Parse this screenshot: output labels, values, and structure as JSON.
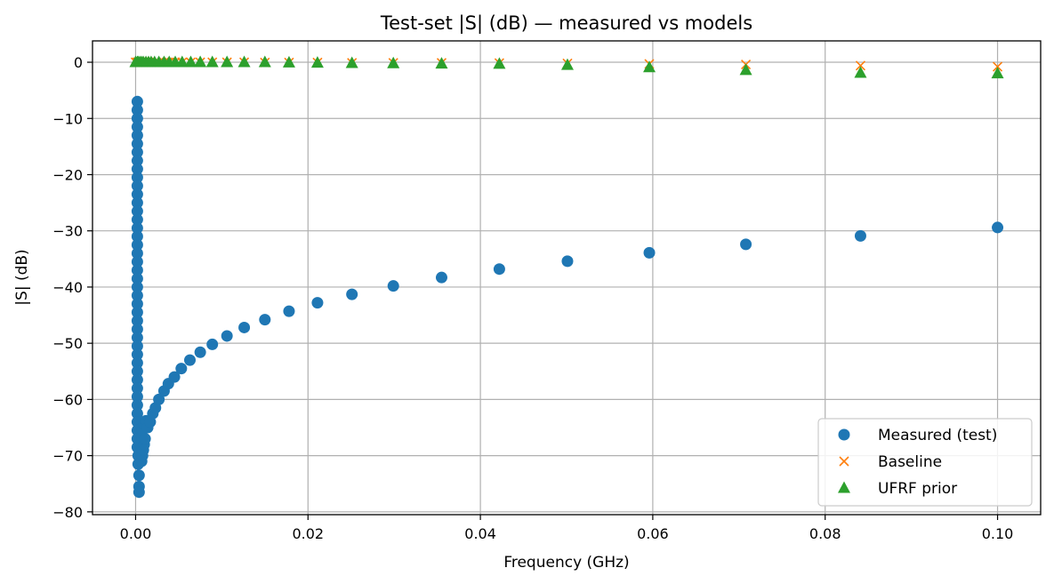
{
  "chart_data": {
    "type": "scatter",
    "title": "Test-set |S| (dB) — measured vs models",
    "xlabel": "Frequency (GHz)",
    "ylabel": "|S| (dB)",
    "xlim": [
      -0.005,
      0.105
    ],
    "ylim": [
      -80.5,
      3.8
    ],
    "x_ticks": [
      0.0,
      0.02,
      0.04,
      0.06,
      0.08,
      0.1
    ],
    "x_tick_labels": [
      "0.00",
      "0.02",
      "0.04",
      "0.06",
      "0.08",
      "0.10"
    ],
    "y_ticks": [
      0,
      -10,
      -20,
      -30,
      -40,
      -50,
      -60,
      -70,
      -80
    ],
    "y_tick_labels": [
      "0",
      "−10",
      "−20",
      "−30",
      "−40",
      "−50",
      "−60",
      "−70",
      "−80"
    ],
    "grid": true,
    "legend_position": "lower-right",
    "colors": {
      "measured": "#1f77b4",
      "baseline": "#ff7f0e",
      "ufrf": "#2ca02c"
    },
    "series": [
      {
        "name": "Measured (test)",
        "marker": "circle",
        "points": [
          [
            0.0002,
            -7.0
          ],
          [
            0.0002,
            -8.5
          ],
          [
            0.0002,
            -10.0
          ],
          [
            0.0002,
            -11.5
          ],
          [
            0.0002,
            -13.0
          ],
          [
            0.0002,
            -14.5
          ],
          [
            0.0002,
            -16.0
          ],
          [
            0.0002,
            -17.5
          ],
          [
            0.0002,
            -19.0
          ],
          [
            0.0002,
            -20.5
          ],
          [
            0.0002,
            -22.0
          ],
          [
            0.0002,
            -23.5
          ],
          [
            0.0002,
            -25.0
          ],
          [
            0.0002,
            -26.5
          ],
          [
            0.0002,
            -28.0
          ],
          [
            0.0002,
            -29.5
          ],
          [
            0.0002,
            -31.0
          ],
          [
            0.0002,
            -32.5
          ],
          [
            0.0002,
            -34.0
          ],
          [
            0.0002,
            -35.5
          ],
          [
            0.0002,
            -37.0
          ],
          [
            0.0002,
            -38.5
          ],
          [
            0.0002,
            -40.0
          ],
          [
            0.0002,
            -41.5
          ],
          [
            0.0002,
            -43.0
          ],
          [
            0.0002,
            -44.5
          ],
          [
            0.0002,
            -46.0
          ],
          [
            0.0002,
            -47.5
          ],
          [
            0.0002,
            -49.0
          ],
          [
            0.0002,
            -50.5
          ],
          [
            0.0002,
            -52.0
          ],
          [
            0.0002,
            -53.5
          ],
          [
            0.0002,
            -55.0
          ],
          [
            0.0002,
            -56.5
          ],
          [
            0.0002,
            -58.0
          ],
          [
            0.0002,
            -59.5
          ],
          [
            0.0002,
            -61.0
          ],
          [
            0.0002,
            -62.5
          ],
          [
            0.0002,
            -64.0
          ],
          [
            0.0002,
            -65.5
          ],
          [
            0.0002,
            -67.0
          ],
          [
            0.0002,
            -68.5
          ],
          [
            0.0003,
            -70.0
          ],
          [
            0.0003,
            -71.5
          ],
          [
            0.0004,
            -73.5
          ],
          [
            0.0004,
            -75.5
          ],
          [
            0.0004,
            -76.5
          ],
          [
            0.0005,
            -69.5
          ],
          [
            0.0006,
            -68.0
          ],
          [
            0.0007,
            -66.5
          ],
          [
            0.0008,
            -65.5
          ],
          [
            0.001,
            -64.5
          ],
          [
            0.0012,
            -63.8
          ],
          [
            0.0007,
            -71.0
          ],
          [
            0.0008,
            -70.0
          ],
          [
            0.0009,
            -69.0
          ],
          [
            0.001,
            -68.0
          ],
          [
            0.0011,
            -67.0
          ],
          [
            0.0014,
            -65.0
          ],
          [
            0.0017,
            -64.0
          ],
          [
            0.002,
            -62.5
          ],
          [
            0.0023,
            -61.5
          ],
          [
            0.0027,
            -60.0
          ],
          [
            0.0033,
            -58.5
          ],
          [
            0.0038,
            -57.2
          ],
          [
            0.0045,
            -56.0
          ],
          [
            0.0053,
            -54.5
          ],
          [
            0.0063,
            -53.0
          ],
          [
            0.0075,
            -51.6
          ],
          [
            0.0089,
            -50.2
          ],
          [
            0.0106,
            -48.7
          ],
          [
            0.0126,
            -47.2
          ],
          [
            0.015,
            -45.8
          ],
          [
            0.0178,
            -44.3
          ],
          [
            0.0211,
            -42.8
          ],
          [
            0.0251,
            -41.3
          ],
          [
            0.0299,
            -39.8
          ],
          [
            0.0355,
            -38.3
          ],
          [
            0.0422,
            -36.8
          ],
          [
            0.0501,
            -35.4
          ],
          [
            0.0596,
            -33.9
          ],
          [
            0.0708,
            -32.4
          ],
          [
            0.0841,
            -30.9
          ],
          [
            0.1,
            -29.4
          ]
        ]
      },
      {
        "name": "Baseline",
        "marker": "x",
        "points": [
          [
            0.0,
            0.0
          ],
          [
            0.0002,
            0.0
          ],
          [
            0.0003,
            0.0
          ],
          [
            0.0005,
            0.0
          ],
          [
            0.0007,
            0.0
          ],
          [
            0.0009,
            0.0
          ],
          [
            0.0012,
            0.0
          ],
          [
            0.0015,
            0.0
          ],
          [
            0.0018,
            0.0
          ],
          [
            0.0022,
            0.0
          ],
          [
            0.0027,
            0.0
          ],
          [
            0.0033,
            0.0
          ],
          [
            0.0039,
            0.0
          ],
          [
            0.0046,
            0.0
          ],
          [
            0.0054,
            0.0
          ],
          [
            0.0064,
            0.0
          ],
          [
            0.0075,
            0.0
          ],
          [
            0.0089,
            0.0
          ],
          [
            0.0106,
            0.0
          ],
          [
            0.0126,
            0.0
          ],
          [
            0.015,
            -0.05
          ],
          [
            0.0178,
            -0.05
          ],
          [
            0.0211,
            -0.05
          ],
          [
            0.0251,
            -0.1
          ],
          [
            0.0299,
            -0.1
          ],
          [
            0.0355,
            -0.1
          ],
          [
            0.0422,
            -0.15
          ],
          [
            0.0501,
            -0.2
          ],
          [
            0.0596,
            -0.3
          ],
          [
            0.0708,
            -0.4
          ],
          [
            0.0841,
            -0.6
          ],
          [
            0.1,
            -0.8
          ]
        ]
      },
      {
        "name": "UFRF prior",
        "marker": "triangle",
        "points": [
          [
            0.0,
            0.0
          ],
          [
            0.0002,
            0.0
          ],
          [
            0.0003,
            0.0
          ],
          [
            0.0005,
            0.0
          ],
          [
            0.0007,
            0.0
          ],
          [
            0.0009,
            0.0
          ],
          [
            0.0012,
            0.0
          ],
          [
            0.0015,
            0.0
          ],
          [
            0.0018,
            0.0
          ],
          [
            0.0022,
            0.0
          ],
          [
            0.0027,
            0.0
          ],
          [
            0.0033,
            0.0
          ],
          [
            0.0039,
            0.0
          ],
          [
            0.0046,
            0.0
          ],
          [
            0.0054,
            0.0
          ],
          [
            0.0064,
            0.0
          ],
          [
            0.0075,
            0.0
          ],
          [
            0.0089,
            0.0
          ],
          [
            0.0106,
            0.0
          ],
          [
            0.0126,
            0.0
          ],
          [
            0.015,
            0.0
          ],
          [
            0.0178,
            -0.05
          ],
          [
            0.0211,
            -0.1
          ],
          [
            0.0251,
            -0.15
          ],
          [
            0.0299,
            -0.2
          ],
          [
            0.0355,
            -0.25
          ],
          [
            0.0422,
            -0.3
          ],
          [
            0.0501,
            -0.5
          ],
          [
            0.0596,
            -0.9
          ],
          [
            0.0708,
            -1.4
          ],
          [
            0.0841,
            -1.9
          ],
          [
            0.1,
            -2.0
          ]
        ]
      }
    ]
  }
}
